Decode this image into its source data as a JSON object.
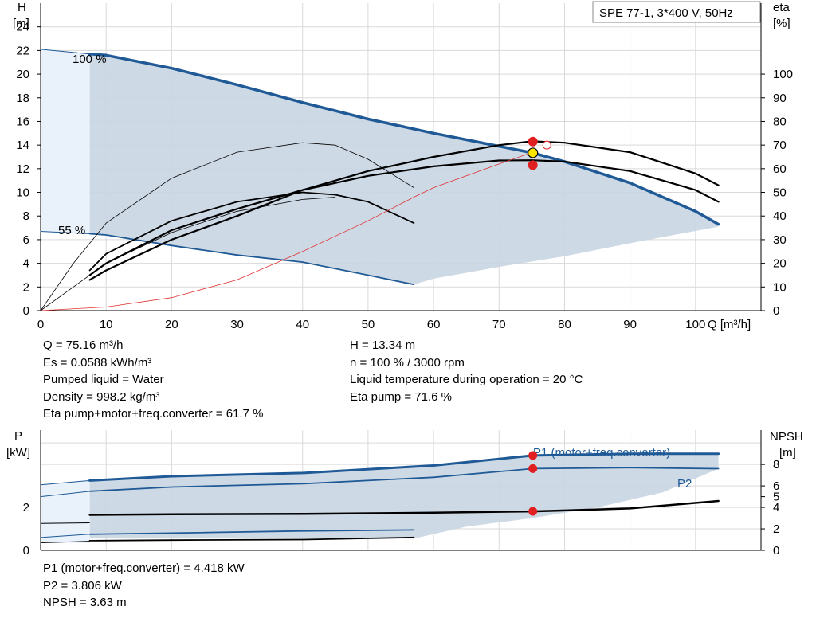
{
  "chart_data": [
    {
      "type": "line",
      "title": "SPE 77-1, 3*400 V, 50Hz",
      "xlabel": "Q [m³/h]",
      "ylabel_top": "H",
      "ylabel_unit": "[m]",
      "y2label_top": "eta",
      "y2label_unit": "[%]",
      "xlim": [
        0,
        110
      ],
      "ylim": [
        0,
        26
      ],
      "y2lim": [
        0,
        130
      ],
      "xticks": [
        0,
        10,
        20,
        30,
        40,
        50,
        60,
        70,
        80,
        90,
        100
      ],
      "yticks": [
        0,
        2,
        4,
        6,
        8,
        10,
        12,
        14,
        16,
        18,
        20,
        22,
        24
      ],
      "y2ticks": [
        0,
        10,
        20,
        30,
        40,
        50,
        60,
        70,
        80,
        90,
        100
      ],
      "curve_labels": {
        "max": "100 %",
        "min": "55 %"
      },
      "series": [
        {
          "role": "H-100",
          "axis": "y",
          "color": "#1f5a96",
          "width": 3.5,
          "x": [
            7.5,
            10,
            20,
            30,
            40,
            50,
            60,
            70,
            75.16,
            80,
            90,
            100,
            103.5
          ],
          "y": [
            21.7,
            21.6,
            20.5,
            19.1,
            17.6,
            16.2,
            15.0,
            13.9,
            13.34,
            12.6,
            10.8,
            8.4,
            7.3
          ]
        },
        {
          "role": "H-55",
          "axis": "y",
          "color": "#1f5a96",
          "width": 1.8,
          "x": [
            7.5,
            10,
            20,
            30,
            40,
            50,
            57
          ],
          "y": [
            6.5,
            6.4,
            5.5,
            4.7,
            4.1,
            3.0,
            2.2
          ]
        },
        {
          "role": "H-extension-100",
          "axis": "y",
          "color": "#1f5a96",
          "width": 1,
          "x": [
            0,
            7.5
          ],
          "y": [
            22.1,
            21.7
          ]
        },
        {
          "role": "H-extension-55",
          "axis": "y",
          "color": "#1f5a96",
          "width": 1,
          "x": [
            0,
            7.5
          ],
          "y": [
            6.7,
            6.5
          ]
        },
        {
          "role": "eta-100-thin",
          "axis": "y2",
          "color": "#000000",
          "width": 0.8,
          "x": [
            0,
            5,
            10,
            20,
            30,
            40,
            45,
            50,
            57
          ],
          "y": [
            0,
            20,
            37,
            56,
            67,
            71,
            70,
            64,
            52
          ]
        },
        {
          "role": "eta-55",
          "axis": "y2",
          "color": "#000000",
          "width": 1.8,
          "x": [
            7.5,
            10,
            20,
            30,
            40,
            45,
            50,
            57
          ],
          "y": [
            17,
            24,
            38,
            46,
            50,
            49,
            46,
            37
          ]
        },
        {
          "role": "eta-mid",
          "axis": "y2",
          "color": "#000000",
          "width": 2.2,
          "x": [
            7.5,
            10,
            20,
            30,
            40,
            50,
            60,
            70,
            75,
            80,
            90,
            100,
            103.5
          ],
          "y": [
            15,
            20,
            34,
            43,
            51,
            57,
            61,
            63.5,
            63.6,
            63,
            59,
            51,
            46
          ]
        },
        {
          "role": "eta-pump",
          "axis": "y2",
          "color": "#000000",
          "width": 2.2,
          "x": [
            7.5,
            10,
            20,
            30,
            40,
            50,
            60,
            70,
            75,
            80,
            90,
            100,
            103.5
          ],
          "y": [
            13,
            17,
            30,
            40,
            51,
            59,
            65,
            70,
            71.6,
            71,
            67,
            58,
            53
          ]
        },
        {
          "role": "eta-thin-red",
          "axis": "y2",
          "color": "#e03030",
          "width": 0.8,
          "x": [
            0,
            10,
            20,
            30,
            40,
            50,
            57,
            60,
            70,
            75.16
          ],
          "y": [
            0,
            1.5,
            5.5,
            13,
            25,
            38,
            48,
            52,
            62,
            67
          ]
        },
        {
          "role": "eta-55-thin",
          "axis": "y2",
          "color": "#000000",
          "width": 0.8,
          "x": [
            0,
            5,
            10,
            20,
            30,
            40,
            45
          ],
          "y": [
            0,
            10,
            20,
            33,
            42,
            47,
            48
          ]
        }
      ],
      "duty_point": {
        "Q": 75.16,
        "H": 13.34
      },
      "markers": [
        {
          "x": 75.16,
          "y": 14.3,
          "color": "#e02020"
        },
        {
          "x": 75.16,
          "y": 12.3,
          "color": "#e02020"
        }
      ],
      "marker_open": {
        "x": 77.3,
        "y": 14.0
      },
      "info": {
        "left": [
          "Q = 75.16 m³/h",
          "Es = 0.0588 kWh/m³",
          "Pumped liquid = Water",
          "Density = 998.2 kg/m³",
          "Eta pump+motor+freq.converter = 61.7 %"
        ],
        "right": [
          "H = 13.34 m",
          "n = 100 % / 3000 rpm",
          "Liquid temperature during operation = 20 °C",
          "Eta pump = 71.6 %"
        ]
      }
    },
    {
      "type": "line",
      "ylabel_top": "P",
      "ylabel_unit": "[kW]",
      "y2label_top": "NPSH",
      "y2label_unit": "[m]",
      "xlim": [
        0,
        110
      ],
      "ylim": [
        0,
        5.6
      ],
      "yticks": [
        0,
        2
      ],
      "y2ticks": [
        0,
        2,
        4,
        5,
        6,
        8
      ],
      "y2lim": [
        0,
        11.2
      ],
      "series": [
        {
          "role": "P1",
          "name": "P1 (motor+freq.converter)",
          "axis": "y",
          "color": "#1f5a96",
          "width": 3,
          "x": [
            7.5,
            20,
            40,
            60,
            75.16,
            90,
            103.5
          ],
          "y": [
            3.25,
            3.45,
            3.6,
            3.95,
            4.418,
            4.5,
            4.5
          ]
        },
        {
          "role": "P2",
          "name": "P2",
          "axis": "y",
          "color": "#1f5a96",
          "width": 1.8,
          "x": [
            7.5,
            20,
            40,
            60,
            75.16,
            90,
            103.5
          ],
          "y": [
            2.75,
            2.95,
            3.1,
            3.4,
            3.806,
            3.85,
            3.8
          ]
        },
        {
          "role": "P-55-a",
          "axis": "y",
          "color": "#1f5a96",
          "width": 1.8,
          "x": [
            7.5,
            20,
            40,
            57
          ],
          "y": [
            0.75,
            0.8,
            0.9,
            0.95
          ]
        },
        {
          "role": "NPSH",
          "axis": "y2",
          "color": "#000000",
          "width": 2.5,
          "x": [
            7.5,
            20,
            40,
            60,
            75.16,
            90,
            103.5
          ],
          "y": [
            3.3,
            3.35,
            3.4,
            3.5,
            3.63,
            3.9,
            4.6
          ]
        },
        {
          "role": "NPSH-55",
          "axis": "y2",
          "color": "#000000",
          "width": 1.8,
          "x": [
            7.5,
            20,
            40,
            57
          ],
          "y": [
            0.9,
            0.95,
            1.0,
            1.2
          ]
        }
      ],
      "markers": [
        {
          "x": 75.16,
          "y": 4.418,
          "axis": "y",
          "color": "#e02020"
        },
        {
          "x": 75.16,
          "y": 3.806,
          "axis": "y",
          "color": "#e02020"
        },
        {
          "x": 75.16,
          "y": 3.63,
          "axis": "y2",
          "color": "#e02020"
        }
      ],
      "info": {
        "left": [
          "P1 (motor+freq.converter) = 4.418 kW",
          "P2 = 3.806 kW",
          "NPSH = 3.63 m"
        ]
      }
    }
  ]
}
